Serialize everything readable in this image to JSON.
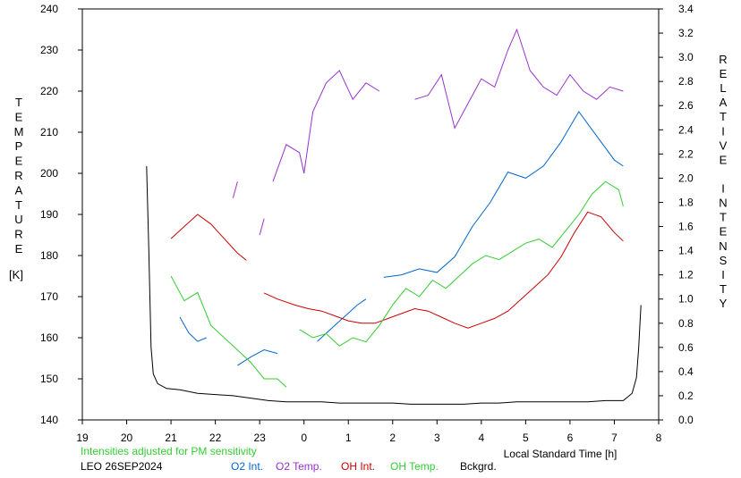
{
  "chart_data": {
    "type": "line",
    "left_axis": {
      "label": "TEMPERATURE",
      "unit": "[K]",
      "min": 140,
      "max": 240,
      "ticks": [
        140,
        150,
        160,
        170,
        180,
        190,
        200,
        210,
        220,
        230,
        240
      ]
    },
    "right_axis": {
      "label": "RELATIVE INTENSITY",
      "min": 0.0,
      "max": 3.4,
      "ticks": [
        "0.0",
        "0.2",
        "0.4",
        "0.6",
        "0.8",
        "1.0",
        "1.2",
        "1.4",
        "1.6",
        "1.8",
        "2.0",
        "2.2",
        "2.4",
        "2.6",
        "2.8",
        "3.0",
        "3.2",
        "3.4"
      ]
    },
    "x_axis": {
      "label": "Local Standard Time [h]",
      "min": 19,
      "max": 32,
      "tick_labels": [
        "19",
        "20",
        "21",
        "22",
        "23",
        "0",
        "1",
        "2",
        "3",
        "4",
        "5",
        "6",
        "7",
        "8"
      ]
    },
    "note": "Intensities adjusted for PM sensitivity",
    "station": "LEO 26SEP2024",
    "grid": false,
    "series": [
      {
        "name": "O2 Int.",
        "axis": "right",
        "color": "#0066cc",
        "segments": [
          [
            [
              21.2,
              0.85
            ],
            [
              21.4,
              0.72
            ],
            [
              21.6,
              0.65
            ],
            [
              21.8,
              0.68
            ]
          ],
          [
            [
              22.5,
              0.45
            ],
            [
              22.8,
              0.52
            ],
            [
              23.1,
              0.58
            ],
            [
              23.4,
              0.55
            ]
          ],
          [
            [
              24.3,
              0.65
            ],
            [
              24.6,
              0.75
            ],
            [
              24.9,
              0.85
            ],
            [
              25.2,
              0.95
            ],
            [
              25.4,
              1.0
            ]
          ],
          [
            [
              25.8,
              1.18
            ],
            [
              26.2,
              1.2
            ],
            [
              26.6,
              1.25
            ],
            [
              27.0,
              1.22
            ],
            [
              27.4,
              1.35
            ],
            [
              27.8,
              1.6
            ],
            [
              28.2,
              1.8
            ],
            [
              28.6,
              2.05
            ],
            [
              29.0,
              2.0
            ],
            [
              29.4,
              2.1
            ],
            [
              29.8,
              2.3
            ],
            [
              30.2,
              2.55
            ],
            [
              30.6,
              2.35
            ],
            [
              31.0,
              2.15
            ],
            [
              31.2,
              2.1
            ]
          ]
        ]
      },
      {
        "name": "O2 Temp.",
        "axis": "left",
        "color": "#9933cc",
        "segments": [
          [
            [
              22.4,
              194
            ],
            [
              22.5,
              198
            ]
          ],
          [
            [
              23.0,
              185
            ],
            [
              23.1,
              189
            ]
          ],
          [
            [
              23.3,
              198
            ],
            [
              23.6,
              207
            ],
            [
              23.9,
              205
            ],
            [
              24.0,
              200
            ],
            [
              24.2,
              215
            ],
            [
              24.5,
              222
            ],
            [
              24.8,
              225
            ],
            [
              25.1,
              218
            ],
            [
              25.4,
              222
            ],
            [
              25.7,
              220
            ]
          ],
          [
            [
              26.5,
              218
            ],
            [
              26.8,
              219
            ],
            [
              27.1,
              224
            ],
            [
              27.4,
              211
            ],
            [
              27.7,
              217
            ],
            [
              28.0,
              223
            ],
            [
              28.3,
              221
            ],
            [
              28.6,
              230
            ],
            [
              28.8,
              235
            ],
            [
              29.1,
              225
            ],
            [
              29.4,
              221
            ],
            [
              29.7,
              219
            ],
            [
              30.0,
              224
            ],
            [
              30.3,
              220
            ],
            [
              30.6,
              218
            ],
            [
              30.9,
              221
            ],
            [
              31.2,
              220
            ]
          ]
        ]
      },
      {
        "name": "OH Int.",
        "axis": "right",
        "color": "#cc0000",
        "segments": [
          [
            [
              21.0,
              1.5
            ],
            [
              21.3,
              1.6
            ],
            [
              21.6,
              1.7
            ],
            [
              21.9,
              1.62
            ],
            [
              22.2,
              1.5
            ],
            [
              22.5,
              1.38
            ],
            [
              22.7,
              1.32
            ]
          ],
          [
            [
              23.1,
              1.05
            ],
            [
              23.4,
              1.0
            ],
            [
              23.8,
              0.95
            ],
            [
              24.1,
              0.92
            ],
            [
              24.4,
              0.9
            ],
            [
              24.7,
              0.86
            ],
            [
              25.0,
              0.82
            ],
            [
              25.3,
              0.8
            ],
            [
              25.6,
              0.8
            ],
            [
              25.9,
              0.84
            ],
            [
              26.2,
              0.88
            ],
            [
              26.5,
              0.92
            ],
            [
              26.8,
              0.9
            ],
            [
              27.1,
              0.85
            ],
            [
              27.4,
              0.8
            ],
            [
              27.7,
              0.76
            ],
            [
              28.0,
              0.8
            ],
            [
              28.3,
              0.84
            ],
            [
              28.6,
              0.9
            ],
            [
              28.9,
              1.0
            ],
            [
              29.2,
              1.1
            ],
            [
              29.5,
              1.2
            ],
            [
              29.8,
              1.35
            ],
            [
              30.1,
              1.55
            ],
            [
              30.4,
              1.72
            ],
            [
              30.7,
              1.68
            ],
            [
              31.0,
              1.55
            ],
            [
              31.2,
              1.48
            ]
          ]
        ]
      },
      {
        "name": "OH Temp.",
        "axis": "left",
        "color": "#33cc33",
        "segments": [
          [
            [
              21.0,
              175
            ],
            [
              21.3,
              169
            ],
            [
              21.6,
              171
            ],
            [
              21.9,
              163
            ],
            [
              22.2,
              160
            ],
            [
              22.5,
              157
            ],
            [
              22.8,
              154
            ],
            [
              23.1,
              150
            ],
            [
              23.4,
              150
            ],
            [
              23.6,
              148
            ]
          ],
          [
            [
              23.9,
              162
            ],
            [
              24.2,
              160
            ],
            [
              24.5,
              161
            ],
            [
              24.8,
              158
            ],
            [
              25.1,
              160
            ],
            [
              25.4,
              159
            ],
            [
              25.7,
              163
            ],
            [
              26.0,
              168
            ],
            [
              26.3,
              172
            ],
            [
              26.6,
              170
            ],
            [
              26.9,
              174
            ],
            [
              27.2,
              172
            ],
            [
              27.5,
              175
            ],
            [
              27.8,
              178
            ],
            [
              28.1,
              180
            ],
            [
              28.4,
              179
            ],
            [
              28.7,
              181
            ],
            [
              29.0,
              183
            ],
            [
              29.3,
              184
            ],
            [
              29.6,
              182
            ],
            [
              29.9,
              186
            ],
            [
              30.2,
              190
            ],
            [
              30.5,
              195
            ],
            [
              30.8,
              198
            ],
            [
              31.1,
              196
            ],
            [
              31.2,
              192
            ]
          ]
        ]
      },
      {
        "name": "Bckgrd.",
        "axis": "right",
        "color": "#000000",
        "segments": [
          [
            [
              20.45,
              2.1
            ],
            [
              20.5,
              1.4
            ],
            [
              20.55,
              0.6
            ],
            [
              20.6,
              0.38
            ],
            [
              20.7,
              0.3
            ],
            [
              20.9,
              0.26
            ],
            [
              21.2,
              0.25
            ],
            [
              21.6,
              0.22
            ],
            [
              22.0,
              0.21
            ],
            [
              22.4,
              0.2
            ],
            [
              22.8,
              0.18
            ],
            [
              23.2,
              0.16
            ],
            [
              23.6,
              0.15
            ],
            [
              24.0,
              0.15
            ],
            [
              24.4,
              0.15
            ],
            [
              24.8,
              0.14
            ],
            [
              25.2,
              0.14
            ],
            [
              25.6,
              0.14
            ],
            [
              26.0,
              0.14
            ],
            [
              26.4,
              0.13
            ],
            [
              26.8,
              0.13
            ],
            [
              27.2,
              0.13
            ],
            [
              27.6,
              0.13
            ],
            [
              28.0,
              0.14
            ],
            [
              28.4,
              0.14
            ],
            [
              28.8,
              0.15
            ],
            [
              29.2,
              0.15
            ],
            [
              29.6,
              0.15
            ],
            [
              30.0,
              0.15
            ],
            [
              30.4,
              0.15
            ],
            [
              30.8,
              0.16
            ],
            [
              31.2,
              0.16
            ],
            [
              31.4,
              0.22
            ],
            [
              31.5,
              0.35
            ],
            [
              31.55,
              0.6
            ],
            [
              31.6,
              0.95
            ]
          ]
        ]
      }
    ]
  }
}
